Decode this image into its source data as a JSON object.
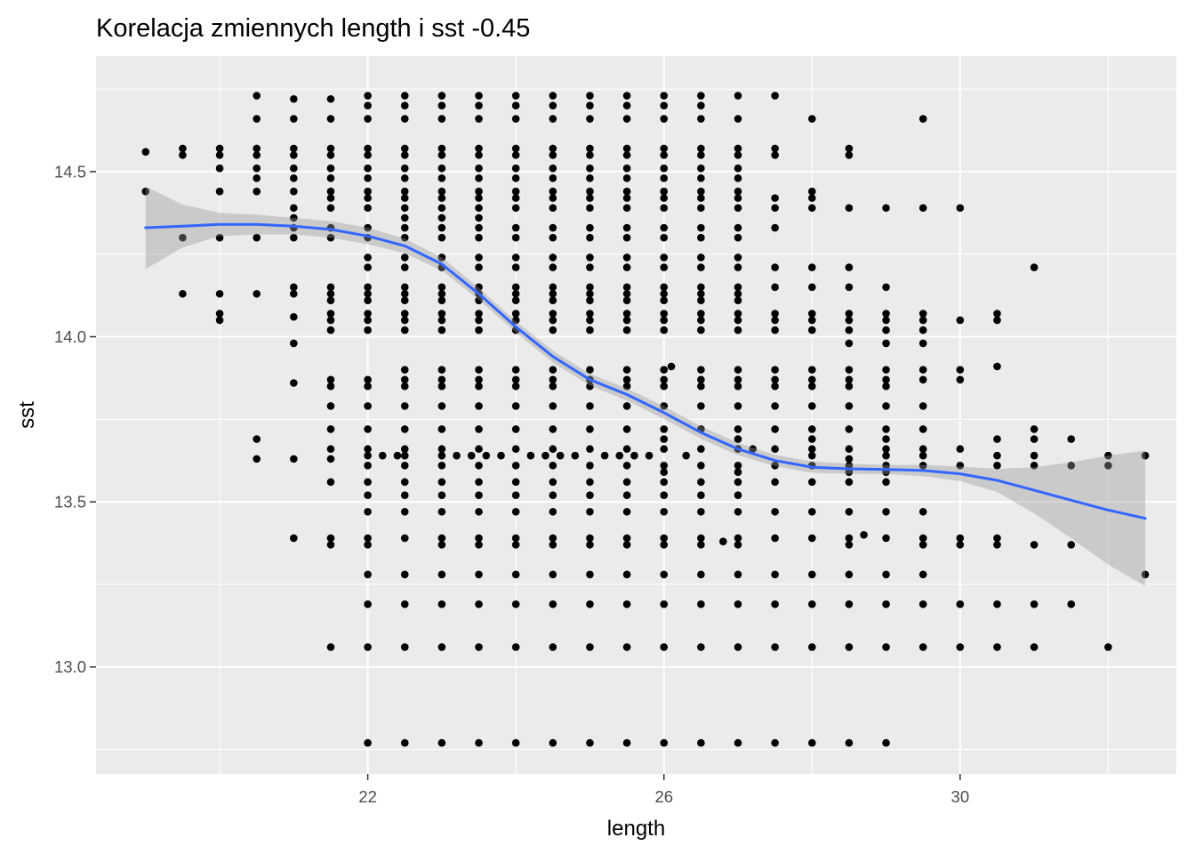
{
  "chart_data": {
    "type": "scatter",
    "title": "Korelacja zmiennych length i sst -0.45",
    "xlabel": "length",
    "ylabel": "sst",
    "xlim": [
      18.33,
      32.92
    ],
    "ylim": [
      12.676,
      14.85
    ],
    "x_ticks": [
      22,
      26,
      30
    ],
    "x_tick_labels": [
      "22",
      "26",
      "30"
    ],
    "x_minor_ticks": [
      20,
      24,
      28,
      32
    ],
    "y_ticks": [
      13.0,
      13.5,
      14.0,
      14.5
    ],
    "y_tick_labels": [
      "13.0",
      "13.5",
      "14.0",
      "14.5"
    ],
    "y_minor_ticks": [
      12.75,
      13.25,
      13.75,
      14.25,
      14.75
    ],
    "grid": true,
    "colors": {
      "panel_background": "#ebebeb",
      "grid_line": "#ffffff",
      "points": "#000000",
      "smooth_line": "#3366ff",
      "confidence_band": "#999999"
    },
    "point_columns": [
      {
        "x": 19.0,
        "y": [
          14.44,
          14.56
        ]
      },
      {
        "x": 19.5,
        "y": [
          14.13,
          14.3,
          14.55,
          14.57
        ]
      },
      {
        "x": 20.0,
        "y": [
          14.05,
          14.07,
          14.13,
          14.3,
          14.44,
          14.51,
          14.55,
          14.57
        ]
      },
      {
        "x": 20.5,
        "y": [
          13.63,
          13.69,
          14.13,
          14.3,
          14.44,
          14.48,
          14.51,
          14.55,
          14.57,
          14.66,
          14.73
        ]
      },
      {
        "x": 21.0,
        "y": [
          13.39,
          13.63,
          13.86,
          13.98,
          14.06,
          14.13,
          14.15,
          14.3,
          14.33,
          14.36,
          14.39,
          14.44,
          14.48,
          14.51,
          14.55,
          14.57,
          14.66,
          14.72
        ]
      },
      {
        "x": 21.5,
        "y": [
          13.06,
          13.37,
          13.39,
          13.56,
          13.63,
          13.66,
          13.72,
          13.79,
          13.85,
          13.87,
          14.02,
          14.05,
          14.07,
          14.11,
          14.13,
          14.15,
          14.3,
          14.33,
          14.39,
          14.42,
          14.44,
          14.48,
          14.51,
          14.55,
          14.57,
          14.66,
          14.72
        ]
      },
      {
        "x": 22.0,
        "y": [
          12.77,
          13.06,
          13.19,
          13.28,
          13.37,
          13.39,
          13.47,
          13.52,
          13.56,
          13.61,
          13.64,
          13.66,
          13.72,
          13.79,
          13.85,
          13.87,
          14.02,
          14.05,
          14.07,
          14.11,
          14.13,
          14.15,
          14.21,
          14.24,
          14.3,
          14.33,
          14.39,
          14.42,
          14.44,
          14.48,
          14.51,
          14.55,
          14.57,
          14.66,
          14.7,
          14.73
        ]
      },
      {
        "x": 22.5,
        "y": [
          12.77,
          13.06,
          13.19,
          13.28,
          13.39,
          13.47,
          13.52,
          13.56,
          13.61,
          13.64,
          13.66,
          13.72,
          13.79,
          13.85,
          13.87,
          13.9,
          14.02,
          14.05,
          14.07,
          14.11,
          14.13,
          14.15,
          14.21,
          14.24,
          14.3,
          14.33,
          14.36,
          14.39,
          14.42,
          14.44,
          14.48,
          14.51,
          14.55,
          14.57,
          14.66,
          14.7,
          14.73
        ]
      },
      {
        "x": 23.0,
        "y": [
          12.77,
          13.06,
          13.19,
          13.28,
          13.37,
          13.39,
          13.47,
          13.52,
          13.56,
          13.61,
          13.64,
          13.66,
          13.72,
          13.79,
          13.85,
          13.87,
          13.9,
          14.02,
          14.05,
          14.07,
          14.11,
          14.13,
          14.15,
          14.21,
          14.24,
          14.3,
          14.33,
          14.36,
          14.39,
          14.42,
          14.44,
          14.48,
          14.51,
          14.55,
          14.57,
          14.66,
          14.7,
          14.73
        ]
      },
      {
        "x": 23.5,
        "y": [
          12.77,
          13.06,
          13.19,
          13.28,
          13.37,
          13.39,
          13.47,
          13.52,
          13.56,
          13.61,
          13.66,
          13.72,
          13.79,
          13.85,
          13.87,
          13.9,
          14.02,
          14.05,
          14.07,
          14.11,
          14.13,
          14.15,
          14.21,
          14.24,
          14.3,
          14.33,
          14.36,
          14.39,
          14.42,
          14.44,
          14.48,
          14.51,
          14.55,
          14.57,
          14.66,
          14.7,
          14.73
        ]
      },
      {
        "x": 24.0,
        "y": [
          12.77,
          13.06,
          13.19,
          13.28,
          13.37,
          13.39,
          13.47,
          13.52,
          13.56,
          13.61,
          13.66,
          13.72,
          13.79,
          13.85,
          13.87,
          13.9,
          14.02,
          14.05,
          14.07,
          14.11,
          14.13,
          14.15,
          14.21,
          14.24,
          14.3,
          14.33,
          14.39,
          14.42,
          14.44,
          14.48,
          14.51,
          14.55,
          14.57,
          14.66,
          14.7,
          14.73
        ]
      },
      {
        "x": 24.5,
        "y": [
          12.77,
          13.06,
          13.19,
          13.28,
          13.37,
          13.39,
          13.47,
          13.52,
          13.56,
          13.61,
          13.66,
          13.72,
          13.79,
          13.85,
          13.87,
          13.9,
          14.02,
          14.05,
          14.07,
          14.11,
          14.13,
          14.15,
          14.21,
          14.24,
          14.3,
          14.33,
          14.39,
          14.42,
          14.44,
          14.48,
          14.51,
          14.55,
          14.57,
          14.66,
          14.7,
          14.73
        ]
      },
      {
        "x": 25.0,
        "y": [
          12.77,
          13.06,
          13.19,
          13.28,
          13.37,
          13.39,
          13.47,
          13.52,
          13.56,
          13.61,
          13.66,
          13.72,
          13.79,
          13.85,
          13.87,
          13.9,
          14.02,
          14.05,
          14.07,
          14.11,
          14.13,
          14.15,
          14.21,
          14.24,
          14.3,
          14.33,
          14.39,
          14.42,
          14.44,
          14.48,
          14.51,
          14.55,
          14.57,
          14.66,
          14.7,
          14.73
        ]
      },
      {
        "x": 25.5,
        "y": [
          12.77,
          13.06,
          13.19,
          13.28,
          13.37,
          13.39,
          13.47,
          13.52,
          13.56,
          13.61,
          13.66,
          13.72,
          13.79,
          13.85,
          13.87,
          13.9,
          14.02,
          14.05,
          14.07,
          14.11,
          14.13,
          14.15,
          14.21,
          14.24,
          14.3,
          14.33,
          14.39,
          14.42,
          14.44,
          14.48,
          14.51,
          14.55,
          14.57,
          14.66,
          14.7,
          14.73
        ]
      },
      {
        "x": 26.0,
        "y": [
          12.77,
          13.06,
          13.19,
          13.28,
          13.37,
          13.39,
          13.47,
          13.52,
          13.56,
          13.59,
          13.61,
          13.66,
          13.69,
          13.72,
          13.79,
          13.85,
          13.87,
          13.9,
          14.02,
          14.05,
          14.07,
          14.11,
          14.13,
          14.15,
          14.21,
          14.24,
          14.3,
          14.33,
          14.39,
          14.42,
          14.44,
          14.48,
          14.51,
          14.55,
          14.57,
          14.66,
          14.7,
          14.73
        ]
      },
      {
        "x": 26.5,
        "y": [
          12.77,
          13.06,
          13.19,
          13.28,
          13.37,
          13.39,
          13.47,
          13.52,
          13.56,
          13.61,
          13.66,
          13.72,
          13.79,
          13.85,
          13.87,
          13.9,
          14.02,
          14.05,
          14.07,
          14.11,
          14.13,
          14.15,
          14.21,
          14.24,
          14.3,
          14.33,
          14.39,
          14.42,
          14.44,
          14.48,
          14.51,
          14.55,
          14.57,
          14.66,
          14.7,
          14.73
        ]
      },
      {
        "x": 27.0,
        "y": [
          12.77,
          13.06,
          13.19,
          13.28,
          13.37,
          13.39,
          13.47,
          13.52,
          13.56,
          13.59,
          13.61,
          13.66,
          13.69,
          13.72,
          13.79,
          13.85,
          13.87,
          13.9,
          14.02,
          14.05,
          14.07,
          14.11,
          14.13,
          14.15,
          14.21,
          14.24,
          14.3,
          14.33,
          14.39,
          14.42,
          14.44,
          14.48,
          14.51,
          14.55,
          14.57,
          14.66,
          14.73
        ]
      },
      {
        "x": 27.5,
        "y": [
          12.77,
          13.06,
          13.19,
          13.28,
          13.39,
          13.47,
          13.56,
          13.61,
          13.66,
          13.72,
          13.79,
          13.85,
          13.87,
          13.9,
          14.02,
          14.05,
          14.07,
          14.15,
          14.21,
          14.33,
          14.39,
          14.42,
          14.55,
          14.57,
          14.73
        ]
      },
      {
        "x": 28.0,
        "y": [
          12.77,
          13.06,
          13.19,
          13.28,
          13.39,
          13.47,
          13.56,
          13.61,
          13.64,
          13.66,
          13.69,
          13.72,
          13.79,
          13.85,
          13.87,
          13.9,
          14.02,
          14.05,
          14.07,
          14.15,
          14.21,
          14.39,
          14.42,
          14.44,
          14.66
        ]
      },
      {
        "x": 28.5,
        "y": [
          12.77,
          13.06,
          13.19,
          13.28,
          13.37,
          13.39,
          13.47,
          13.56,
          13.59,
          13.61,
          13.63,
          13.66,
          13.72,
          13.79,
          13.85,
          13.87,
          13.9,
          13.98,
          14.02,
          14.05,
          14.07,
          14.15,
          14.21,
          14.39,
          14.55,
          14.57
        ]
      },
      {
        "x": 29.0,
        "y": [
          12.77,
          13.06,
          13.19,
          13.28,
          13.39,
          13.47,
          13.56,
          13.59,
          13.61,
          13.64,
          13.66,
          13.69,
          13.72,
          13.79,
          13.85,
          13.87,
          13.9,
          13.98,
          14.02,
          14.05,
          14.07,
          14.15,
          14.39
        ]
      },
      {
        "x": 29.5,
        "y": [
          13.06,
          13.19,
          13.28,
          13.37,
          13.39,
          13.47,
          13.61,
          13.64,
          13.66,
          13.72,
          13.79,
          13.87,
          13.9,
          13.98,
          14.02,
          14.05,
          14.07,
          14.39,
          14.66
        ]
      },
      {
        "x": 30.0,
        "y": [
          13.06,
          13.19,
          13.37,
          13.39,
          13.61,
          13.66,
          13.87,
          13.9,
          14.05,
          14.39
        ]
      },
      {
        "x": 30.5,
        "y": [
          13.06,
          13.19,
          13.37,
          13.39,
          13.61,
          13.64,
          13.69,
          13.91,
          14.05,
          14.07
        ]
      },
      {
        "x": 31.0,
        "y": [
          13.06,
          13.19,
          13.37,
          13.61,
          13.64,
          13.69,
          13.72,
          14.21
        ]
      },
      {
        "x": 31.5,
        "y": [
          13.19,
          13.37,
          13.61,
          13.69
        ]
      },
      {
        "x": 32.0,
        "y": [
          13.06,
          13.61,
          13.64
        ]
      },
      {
        "x": 32.5,
        "y": [
          13.28,
          13.64
        ]
      }
    ],
    "extra_points": {
      "x": [
        22.2,
        22.4,
        23.2,
        23.4,
        23.6,
        23.8,
        24.2,
        24.4,
        24.6,
        24.8,
        25.2,
        25.4,
        25.6,
        25.8,
        26.3,
        26.8,
        27.2,
        28.7,
        26.1
      ],
      "y": [
        13.64,
        13.64,
        13.64,
        13.64,
        13.64,
        13.64,
        13.64,
        13.64,
        13.64,
        13.64,
        13.64,
        13.64,
        13.64,
        13.64,
        13.64,
        13.38,
        13.66,
        13.4,
        13.91
      ]
    },
    "smooth": {
      "x": [
        19.0,
        19.5,
        20.0,
        20.5,
        21.0,
        21.5,
        22.0,
        22.5,
        23.0,
        23.5,
        24.0,
        24.5,
        25.0,
        25.5,
        26.0,
        26.5,
        27.0,
        27.5,
        28.0,
        28.5,
        29.0,
        29.5,
        30.0,
        30.5,
        31.0,
        31.5,
        32.0,
        32.5
      ],
      "y": [
        14.33,
        14.335,
        14.34,
        14.34,
        14.335,
        14.325,
        14.305,
        14.275,
        14.22,
        14.13,
        14.03,
        13.94,
        13.87,
        13.825,
        13.77,
        13.71,
        13.66,
        13.625,
        13.605,
        13.6,
        13.598,
        13.595,
        13.585,
        13.565,
        13.535,
        13.505,
        13.475,
        13.45
      ],
      "ci_upper": [
        14.455,
        14.4,
        14.375,
        14.37,
        14.36,
        14.35,
        14.33,
        14.297,
        14.24,
        14.148,
        14.047,
        13.958,
        13.888,
        13.843,
        13.789,
        13.729,
        13.679,
        13.642,
        13.622,
        13.615,
        13.612,
        13.612,
        13.607,
        13.6,
        13.605,
        13.62,
        13.64,
        13.655
      ],
      "ci_lower": [
        14.205,
        14.27,
        14.305,
        14.31,
        14.31,
        14.3,
        14.28,
        14.253,
        14.2,
        14.112,
        14.013,
        13.922,
        13.852,
        13.807,
        13.751,
        13.691,
        13.641,
        13.608,
        13.588,
        13.585,
        13.584,
        13.578,
        13.563,
        13.53,
        13.465,
        13.39,
        13.31,
        13.245
      ]
    }
  }
}
